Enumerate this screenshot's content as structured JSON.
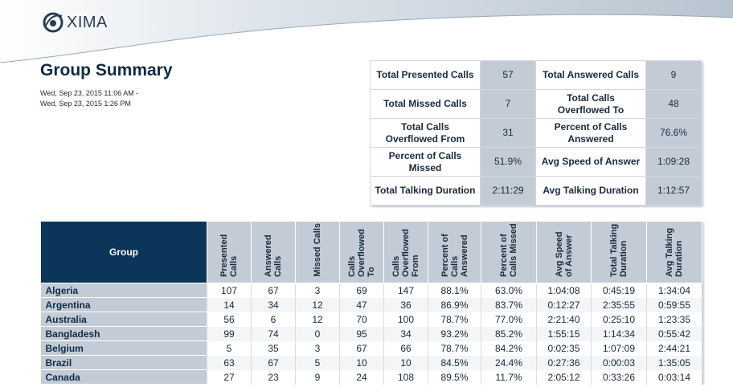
{
  "brand": {
    "logo_text": "XIMA"
  },
  "report": {
    "title": "Group Summary",
    "date_from": "Wed, Sep 23, 2015 11:06 AM -",
    "date_to": "Wed, Sep 23, 2015 1:26 PM"
  },
  "summary": [
    [
      {
        "label": "Total Presented Calls",
        "value": "57"
      },
      {
        "label": "Total Answered Calls",
        "value": "9"
      }
    ],
    [
      {
        "label": "Total Missed Calls",
        "value": "7"
      },
      {
        "label": "Total Calls Overflowed To",
        "value": "48"
      }
    ],
    [
      {
        "label": "Total Calls Overflowed From",
        "value": "31"
      },
      {
        "label": "Percent of Calls Answered",
        "value": "76.6%"
      }
    ],
    [
      {
        "label": "Percent of Calls Missed",
        "value": "51.9%"
      },
      {
        "label": "Avg Speed of Answer",
        "value": "1:09:28"
      }
    ],
    [
      {
        "label": "Total Talking Duration",
        "value": "2:11:29"
      },
      {
        "label": "Avg Talking Duration",
        "value": "1:12:57"
      }
    ]
  ],
  "table": {
    "columns": [
      "Group",
      "Presented Calls",
      "Answered Calls",
      "Missed Calls",
      "Calls Overflowed To",
      "Calls Overflowed From",
      "Percent of Calls Answered",
      "Percent of Calls Missed",
      "Avg Speed of Answer",
      "Total Talking Duration",
      "Avg Talking Duration"
    ],
    "rows": [
      [
        "Algeria",
        "107",
        "67",
        "3",
        "69",
        "147",
        "88.1%",
        "63.0%",
        "1:04:08",
        "0:45:19",
        "1:34:04"
      ],
      [
        "Argentina",
        "14",
        "34",
        "12",
        "47",
        "36",
        "86.9%",
        "83.7%",
        "0:12:27",
        "2:35:55",
        "0:59:55"
      ],
      [
        "Australia",
        "56",
        "6",
        "12",
        "70",
        "100",
        "78.7%",
        "77.0%",
        "2:21:40",
        "0:25:10",
        "1:23:35"
      ],
      [
        "Bangladesh",
        "99",
        "74",
        "0",
        "95",
        "34",
        "93.2%",
        "85.2%",
        "1:55:15",
        "1:14:34",
        "0:55:42"
      ],
      [
        "Belgium",
        "5",
        "35",
        "3",
        "67",
        "66",
        "78.7%",
        "84.2%",
        "0:02:35",
        "1:07:09",
        "2:44:21"
      ],
      [
        "Brazil",
        "63",
        "67",
        "5",
        "10",
        "10",
        "84.5%",
        "24.4%",
        "0:27:36",
        "0:00:03",
        "1:35:05"
      ],
      [
        "Canada",
        "27",
        "23",
        "9",
        "24",
        "108",
        "89.5%",
        "11.7%",
        "2:05:12",
        "0:33:26",
        "0:03:14"
      ]
    ]
  }
}
